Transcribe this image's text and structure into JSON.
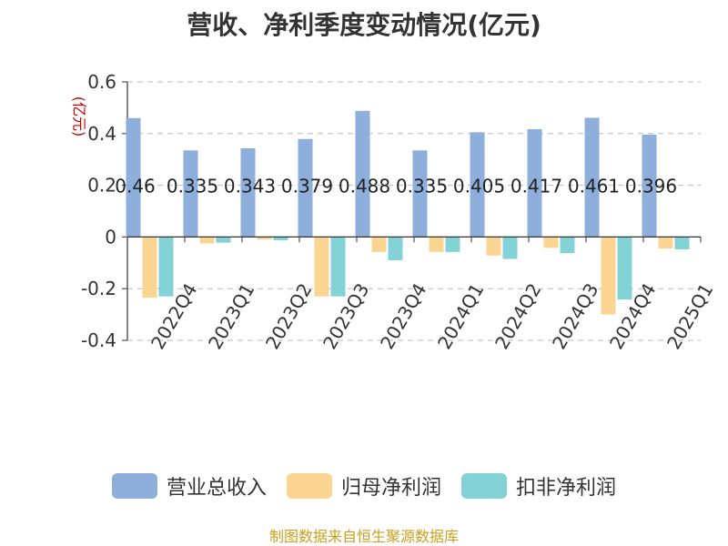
{
  "chart_data": {
    "type": "bar",
    "title": "营收、净利季度变动情况(亿元)",
    "ylabel": "(亿元)",
    "xlabel": "",
    "categories": [
      "2022Q4",
      "2023Q1",
      "2023Q2",
      "2023Q3",
      "2023Q4",
      "2024Q1",
      "2024Q2",
      "2024Q3",
      "2024Q4",
      "2025Q1"
    ],
    "series": [
      {
        "name": "营业总收入",
        "color": "#8eaedb",
        "values": [
          0.46,
          0.335,
          0.343,
          0.379,
          0.488,
          0.335,
          0.405,
          0.417,
          0.461,
          0.396
        ],
        "labels": [
          "0.46",
          "0.335",
          "0.343",
          "0.379",
          "0.488",
          "0.335",
          "0.405",
          "0.417",
          "0.461",
          "0.396"
        ]
      },
      {
        "name": "归母净利润",
        "color": "#fdd593",
        "values": [
          -0.235,
          -0.025,
          -0.01,
          -0.23,
          -0.058,
          -0.058,
          -0.072,
          -0.042,
          -0.3,
          -0.045
        ]
      },
      {
        "name": "扣非净利润",
        "color": "#83d3d6",
        "values": [
          -0.23,
          -0.022,
          -0.013,
          -0.23,
          -0.09,
          -0.058,
          -0.085,
          -0.063,
          -0.242,
          -0.048
        ]
      }
    ],
    "ylim": [
      -0.4,
      0.6
    ],
    "yticks": [
      "0.6",
      "0.4",
      "0.2",
      "0",
      "-0.2",
      "-0.4"
    ],
    "ytick_values": [
      0.6,
      0.4,
      0.2,
      0,
      -0.2,
      -0.4
    ],
    "grid": true,
    "legend_position": "bottom"
  },
  "source": "制图数据来自恒生聚源数据库"
}
